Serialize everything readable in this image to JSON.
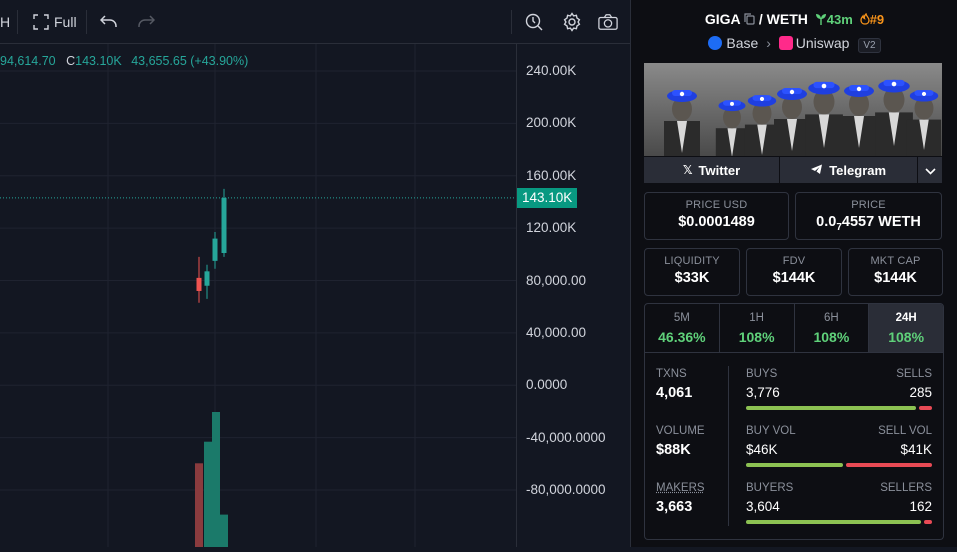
{
  "toolbar": {
    "left_partial": "H",
    "full_label": "Full"
  },
  "legend": {
    "high_partial": "94,614.70",
    "close_label": "C",
    "close": "143.10K",
    "change": "43,655.65 (+43.90%)"
  },
  "price_axis": {
    "ticks": [
      "240.00K",
      "200.00K",
      "160.00K",
      "120.00K",
      "80,000.00",
      "40,000.00",
      "0.0000",
      "-40,000.0000",
      "-80,000.0000"
    ],
    "current": "143.10K"
  },
  "chart_data": {
    "type": "candlestick",
    "candles": [
      {
        "open": 82000,
        "high": 98000,
        "low": 63000,
        "close": 72000
      },
      {
        "open": 76000,
        "high": 92000,
        "low": 66000,
        "close": 87000
      },
      {
        "open": 95000,
        "high": 117000,
        "low": 89000,
        "close": 112000
      },
      {
        "open": 101000,
        "high": 150000,
        "low": 98000,
        "close": 143100
      }
    ],
    "volume": [
      {
        "value": 62,
        "up": false
      },
      {
        "value": 78,
        "up": true
      },
      {
        "value": 100,
        "up": true
      },
      {
        "value": 24,
        "up": true
      }
    ],
    "ylim": [
      -115000,
      265000
    ],
    "current_price": 143100,
    "colors": {
      "up": "#26a69a",
      "down": "#ef5350",
      "vol_up": "#1b7a6a",
      "vol_down": "#8a3b3e"
    }
  },
  "pair": {
    "base": "GIGA",
    "separator": "/",
    "quote": "WETH",
    "age": "43m",
    "rank": "#9",
    "chain": "Base",
    "dex": "Uniswap",
    "version": "V2"
  },
  "social": {
    "twitter": "Twitter",
    "telegram": "Telegram"
  },
  "price": {
    "usd_label": "PRICE USD",
    "usd_value": "$0.0001489",
    "native_label": "PRICE",
    "native_prefix": "0.0",
    "native_sub": "7",
    "native_rest": "4557 WETH"
  },
  "metrics": [
    {
      "label": "LIQUIDITY",
      "value": "$33K"
    },
    {
      "label": "FDV",
      "value": "$144K"
    },
    {
      "label": "MKT CAP",
      "value": "$144K"
    }
  ],
  "timeframes": [
    {
      "label": "5M",
      "value": "46.36%"
    },
    {
      "label": "1H",
      "value": "108%"
    },
    {
      "label": "6H",
      "value": "108%"
    },
    {
      "label": "24H",
      "value": "108%"
    }
  ],
  "stats": {
    "txns_label": "TXNS",
    "txns": "4,061",
    "buys_label": "BUYS",
    "buys": "3,776",
    "sells_label": "SELLS",
    "sells": "285",
    "volume_label": "VOLUME",
    "volume": "$88K",
    "buy_vol_label": "BUY VOL",
    "buy_vol": "$46K",
    "sell_vol_label": "SELL VOL",
    "sell_vol": "$41K",
    "makers_label": "MAKERS",
    "makers": "3,663",
    "buyers_label": "BUYERS",
    "buyers": "3,604",
    "sellers_label": "SELLERS",
    "sellers": "162",
    "buys_ratio": 0.93,
    "buy_vol_ratio": 0.53,
    "buyers_ratio": 0.957
  }
}
